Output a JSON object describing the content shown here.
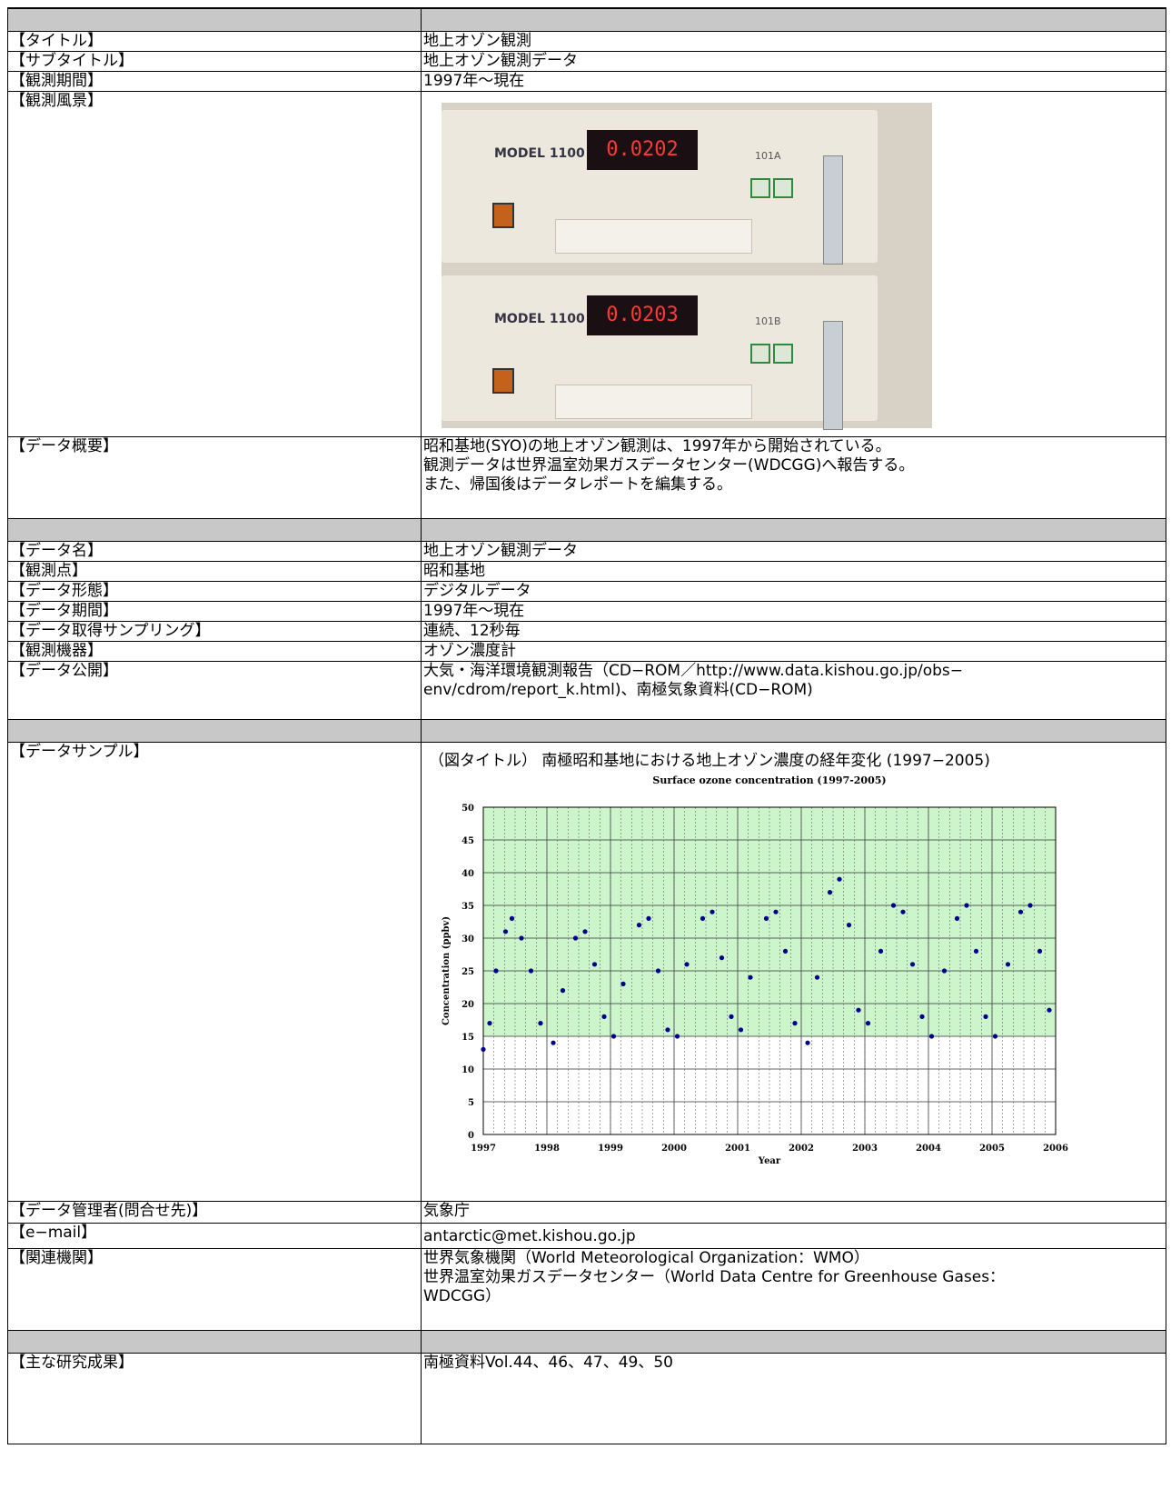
{
  "title_row": {
    "label": "【タイトル】",
    "value": "地上オゾン観測"
  },
  "subtitle_row": {
    "label": "【サブタイトル】",
    "value": "地上オゾン観測データ"
  },
  "period_row": {
    "label": "【観測期間】",
    "value": "1997年～現在"
  },
  "scene_row": {
    "label": "【観測風景】",
    "photo": {
      "unit1_display": "0.0202",
      "unit2_display": "0.0203",
      "model_text": "MODEL 1100",
      "unit1_tag": "101A",
      "unit2_tag": "101B"
    }
  },
  "summary_row": {
    "label": "【データ概要】",
    "value": "昭和基地(SYO)の地上オゾン観測は、1997年から開始されている。\n観測データは世界温室効果ガスデータセンター(WDCGG)へ報告する。\nまた、帰国後はデータレポートを編集する。"
  },
  "data_name_row": {
    "label": "【データ名】",
    "value": "地上オゾン観測データ"
  },
  "site_row": {
    "label": "【観測点】",
    "value": "昭和基地"
  },
  "format_row": {
    "label": "【データ形態】",
    "value": "デジタルデータ"
  },
  "data_period_row": {
    "label": "【データ期間】",
    "value": "1997年～現在"
  },
  "sampling_row": {
    "label": "【データ取得サンプリング】",
    "value": "連続、12秒毎"
  },
  "instrument_row": {
    "label": "【観測機器】",
    "value": "オゾン濃度計"
  },
  "publish_row": {
    "label": "【データ公開】",
    "value": "大気・海洋環境観測報告（CD−ROM／http://www.data.kishou.go.jp/obs−\nenv/cdrom/report_k.html)、南極気象資料(CD−ROM)"
  },
  "sample_row": {
    "label": "【データサンプル】",
    "caption": "（図タイトル） 南極昭和基地における地上オゾン濃度の経年変化 (1997−2005)"
  },
  "chart_data": {
    "type": "scatter",
    "title": "Surface ozone concentration (1997-2005)",
    "xlabel": "Year",
    "ylabel": "Concentration (ppbv)",
    "xlim": [
      1997,
      2006
    ],
    "ylim": [
      0,
      50
    ],
    "x_ticks": [
      "1997",
      "1998",
      "1999",
      "2000",
      "2001",
      "2002",
      "2003",
      "2004",
      "2005",
      "2006"
    ],
    "y_ticks": [
      "0",
      "5",
      "10",
      "15",
      "20",
      "25",
      "30",
      "35",
      "40",
      "45",
      "50"
    ],
    "grid": true,
    "colors": {
      "points": "#00008b",
      "plot_band": "#ccf5cc"
    },
    "series": [
      {
        "x": [
          1997.0,
          1997.1,
          1997.2,
          1997.35,
          1997.45,
          1997.6,
          1997.75,
          1997.9,
          1998.1,
          1998.25,
          1998.45,
          1998.6,
          1998.75,
          1998.9,
          1999.05,
          1999.2,
          1999.45,
          1999.6,
          1999.75,
          1999.9,
          2000.05,
          2000.2,
          2000.45,
          2000.6,
          2000.75,
          2000.9,
          2001.05,
          2001.2,
          2001.45,
          2001.6,
          2001.75,
          2001.9,
          2002.1,
          2002.25,
          2002.45,
          2002.6,
          2002.75,
          2002.9,
          2003.05,
          2003.25,
          2003.45,
          2003.6,
          2003.75,
          2003.9,
          2004.05,
          2004.25,
          2004.45,
          2004.6,
          2004.75,
          2004.9,
          2005.05,
          2005.25,
          2005.45,
          2005.6,
          2005.75,
          2005.9
        ],
        "y": [
          13,
          17,
          25,
          31,
          33,
          30,
          25,
          17,
          14,
          22,
          30,
          31,
          26,
          18,
          15,
          23,
          32,
          33,
          25,
          16,
          15,
          26,
          33,
          34,
          27,
          18,
          16,
          24,
          33,
          34,
          28,
          17,
          14,
          24,
          37,
          39,
          32,
          19,
          17,
          28,
          35,
          34,
          26,
          18,
          15,
          25,
          33,
          35,
          28,
          18,
          15,
          26,
          34,
          35,
          28,
          19
        ]
      }
    ]
  },
  "admin_row": {
    "label": "【データ管理者(問合せ先)】",
    "value": "気象庁"
  },
  "email_row": {
    "label": "【e−mail】",
    "value": "antarctic@met.kishou.go.jp"
  },
  "org_row": {
    "label": "【関連機関】",
    "value": "世界気象機関（World Meteorological Organization：WMO）\n世界温室効果ガスデータセンター（World Data Centre for Greenhouse Gases：\nWDCGG）"
  },
  "results_row": {
    "label": "【主な研究成果】",
    "value": "南極資料Vol.44、46、47、49、50"
  }
}
